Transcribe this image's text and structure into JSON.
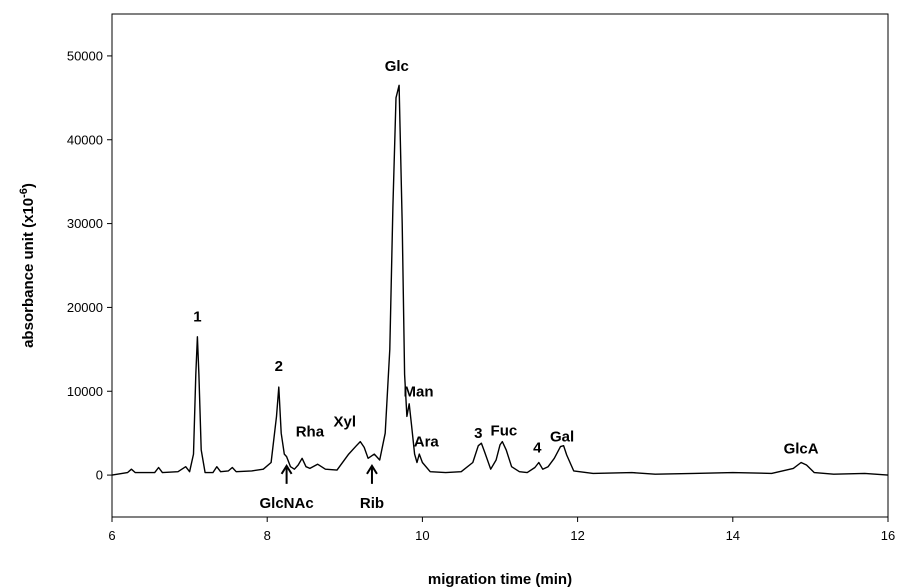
{
  "chart_data": {
    "type": "line",
    "title": "",
    "xlabel": "migration time (min)",
    "ylabel_main": "absorbance unit (x10",
    "ylabel_sup": "-6",
    "ylabel_close": ")",
    "xlim": [
      6,
      16
    ],
    "ylim": [
      -5000,
      55000
    ],
    "xticks": [
      6,
      8,
      10,
      12,
      14,
      16
    ],
    "yticks": [
      0,
      10000,
      20000,
      30000,
      40000,
      50000
    ],
    "grid": false,
    "line_color": "#000000",
    "series": [
      {
        "x": [
          6.0,
          6.2,
          6.25,
          6.3,
          6.55,
          6.6,
          6.65,
          6.85,
          6.95,
          7.0,
          7.05,
          7.08,
          7.1,
          7.12,
          7.15,
          7.2,
          7.3,
          7.35,
          7.4,
          7.5,
          7.55,
          7.6,
          7.8,
          7.95,
          8.05,
          8.12,
          8.15,
          8.18,
          8.22,
          8.25,
          8.3,
          8.35,
          8.4,
          8.45,
          8.5,
          8.55,
          8.65,
          8.75,
          8.9,
          9.05,
          9.15,
          9.2,
          9.25,
          9.3,
          9.38,
          9.45,
          9.52,
          9.58,
          9.62,
          9.66,
          9.7,
          9.74,
          9.77,
          9.8,
          9.83,
          9.86,
          9.9,
          9.93,
          9.96,
          10.0,
          10.1,
          10.3,
          10.5,
          10.65,
          10.72,
          10.76,
          10.8,
          10.88,
          10.95,
          11.0,
          11.03,
          11.08,
          11.15,
          11.25,
          11.35,
          11.45,
          11.5,
          11.55,
          11.62,
          11.7,
          11.78,
          11.82,
          11.86,
          11.95,
          12.2,
          12.7,
          13.0,
          13.5,
          14.0,
          14.5,
          14.78,
          14.88,
          14.95,
          15.05,
          15.3,
          15.7,
          16.0
        ],
        "y": [
          0,
          300,
          700,
          300,
          300,
          900,
          300,
          400,
          1000,
          400,
          2500,
          12000,
          16500,
          12000,
          3000,
          300,
          300,
          1000,
          400,
          500,
          900,
          400,
          500,
          700,
          1500,
          7000,
          10500,
          5000,
          2500,
          2200,
          1000,
          700,
          1200,
          2000,
          1000,
          800,
          1300,
          700,
          600,
          2500,
          3500,
          4000,
          3300,
          2000,
          2500,
          1800,
          5000,
          15000,
          32000,
          45000,
          46500,
          30000,
          12000,
          7000,
          8500,
          6000,
          2500,
          1500,
          2500,
          1500,
          400,
          300,
          400,
          1500,
          3500,
          3800,
          2800,
          700,
          1800,
          3600,
          4000,
          3000,
          1000,
          400,
          300,
          900,
          1500,
          700,
          1000,
          2000,
          3400,
          3500,
          2400,
          500,
          200,
          300,
          100,
          200,
          300,
          200,
          800,
          1500,
          1200,
          300,
          100,
          200,
          0
        ]
      }
    ],
    "annotations": [
      {
        "text": "1",
        "x": 7.1,
        "y": 18300
      },
      {
        "text": "2",
        "x": 8.15,
        "y": 12400
      },
      {
        "text": "Rha",
        "x": 8.55,
        "y": 4600
      },
      {
        "text": "Xyl",
        "x": 9.0,
        "y": 5800
      },
      {
        "text": "Glc",
        "x": 9.67,
        "y": 48200
      },
      {
        "text": "Man",
        "x": 9.95,
        "y": 9400
      },
      {
        "text": "Ara",
        "x": 10.05,
        "y": 3400
      },
      {
        "text": "3",
        "x": 10.72,
        "y": 4400
      },
      {
        "text": "Fuc",
        "x": 11.05,
        "y": 4700
      },
      {
        "text": "4",
        "x": 11.48,
        "y": 2700
      },
      {
        "text": "Gal",
        "x": 11.8,
        "y": 4000
      },
      {
        "text": "GlcA",
        "x": 14.88,
        "y": 2600
      }
    ],
    "arrows": [
      {
        "text": "GlcNAc",
        "x": 8.25,
        "tip_y": 1100,
        "label_y": -3900
      },
      {
        "text": "Rib",
        "x": 9.35,
        "tip_y": 1100,
        "label_y": -3900
      }
    ]
  }
}
